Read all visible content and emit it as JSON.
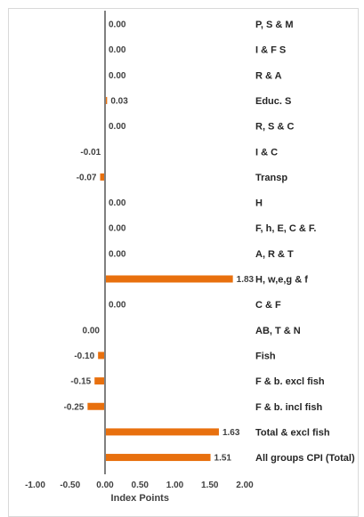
{
  "chart_data": {
    "type": "bar",
    "orientation": "horizontal",
    "categories": [
      "P, S & M",
      "I & F S",
      "R & A",
      "Educ. S",
      "R, S & C",
      "I & C",
      "Transp",
      "H",
      "F, h, E, C & F.",
      "A, R & T",
      "H, w,e,g & f",
      "C & F",
      "AB, T & N",
      "Fish",
      "F & b. excl fish",
      "F & b. incl fish",
      "Total & excl fish",
      "All groups CPI (Total)"
    ],
    "values": [
      0.0,
      0.0,
      0.0,
      0.03,
      0.0,
      -0.01,
      -0.07,
      0.0,
      0.0,
      0.0,
      1.83,
      0.0,
      0.0,
      -0.1,
      -0.15,
      -0.25,
      1.63,
      1.51
    ],
    "data_labels": [
      "0.00",
      "0.00",
      "0.00",
      "0.03",
      "0.00",
      "-0.01",
      "-0.07",
      "0.00",
      "0.00",
      "0.00",
      "1.83",
      "0.00",
      "0.00",
      "-0.10",
      "-0.15",
      "-0.25",
      "1.63",
      "1.51"
    ],
    "title": "",
    "xlabel": "Index Points",
    "ylabel": "",
    "xlim": [
      -1.0,
      2.0
    ],
    "xticks": [
      "-1.00",
      "-0.50",
      "0.00",
      "0.50",
      "1.00",
      "1.50",
      "2.00"
    ],
    "grid": false,
    "legend": "none",
    "colors": {
      "bar": "#E8700E",
      "axis": "#808080",
      "frame": "#d9d9d9"
    }
  }
}
